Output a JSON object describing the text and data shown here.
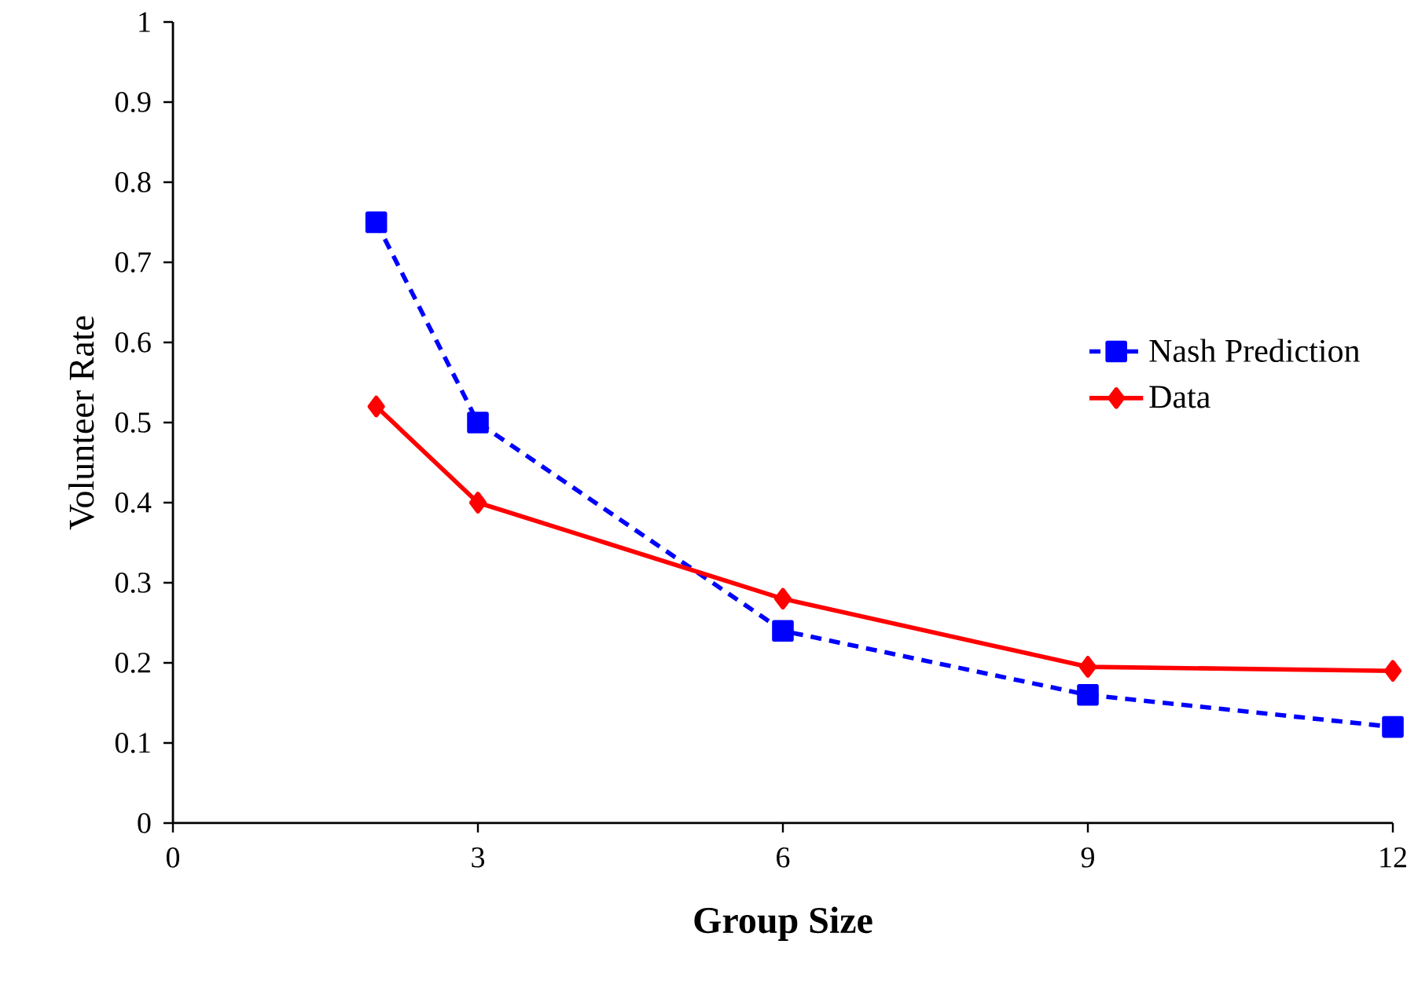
{
  "chart_data": {
    "type": "line",
    "xlabel": "Group Size",
    "ylabel": "Volunteer Rate",
    "x": [
      2,
      3,
      6,
      9,
      12
    ],
    "series": [
      {
        "name": "Nash Prediction",
        "color": "#0000ff",
        "values": [
          0.75,
          0.5,
          0.24,
          0.16,
          0.12
        ],
        "marker": "square",
        "line_style": "dashed"
      },
      {
        "name": "Data",
        "color": "#ff0000",
        "values": [
          0.52,
          0.4,
          0.28,
          0.195,
          0.19
        ],
        "marker": "diamond",
        "line_style": "solid"
      }
    ],
    "xlim": [
      0,
      12
    ],
    "xticks": [
      0,
      3,
      6,
      9,
      12
    ],
    "ylim": [
      0,
      1
    ],
    "yticks": [
      0,
      0.1,
      0.2,
      0.3,
      0.4,
      0.5,
      0.6,
      0.7,
      0.8,
      0.9,
      1
    ],
    "legend": "right",
    "grid": false
  }
}
